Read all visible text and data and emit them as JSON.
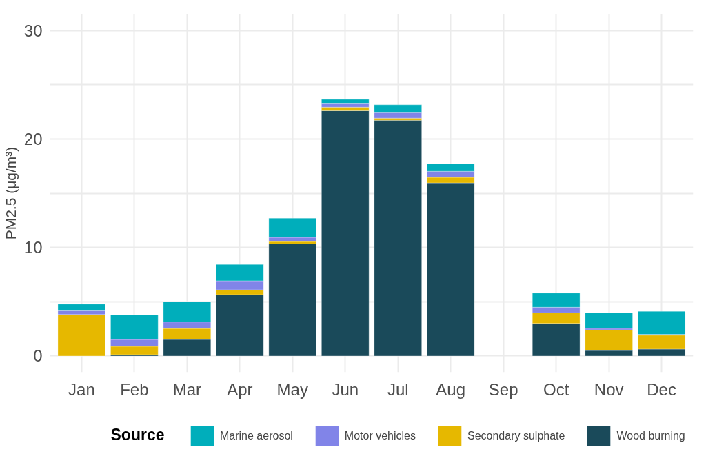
{
  "chart_data": {
    "type": "bar",
    "stacked": true,
    "ylabel": "PM2.5 (μg/m³)",
    "legend_title": "Source",
    "legend": "bottom",
    "grid": true,
    "categories": [
      "Jan",
      "Feb",
      "Mar",
      "Apr",
      "May",
      "Jun",
      "Jul",
      "Aug",
      "Sep",
      "Oct",
      "Nov",
      "Dec"
    ],
    "ylim": [
      -1.5,
      31.5
    ],
    "yticks": [
      0,
      {
        "value": 5,
        "label": null
      },
      10,
      {
        "value": 15,
        "label": null
      },
      20,
      {
        "value": 25,
        "label": null
      },
      30
    ],
    "series": [
      {
        "name": "Wood burning",
        "color": "#1a4a5a",
        "values": [
          0,
          0.12,
          1.52,
          5.65,
          10.33,
          22.6,
          21.72,
          15.95,
          null,
          3.0,
          0.5,
          0.63
        ]
      },
      {
        "name": "Secondary sulphate",
        "color": "#e6b800",
        "values": [
          3.82,
          0.77,
          1.01,
          0.45,
          0.22,
          0.33,
          0.2,
          0.51,
          null,
          0.98,
          1.91,
          1.29
        ]
      },
      {
        "name": "Motor vehicles",
        "color": "#8184e8",
        "values": [
          0.35,
          0.63,
          0.6,
          0.83,
          0.38,
          0.32,
          0.51,
          0.56,
          null,
          0.51,
          0.14,
          0.07
        ]
      },
      {
        "name": "Marine aerosol",
        "color": "#00aebb",
        "values": [
          0.61,
          2.28,
          1.89,
          1.5,
          1.77,
          0.4,
          0.72,
          0.72,
          null,
          1.31,
          1.45,
          2.12
        ]
      }
    ]
  }
}
